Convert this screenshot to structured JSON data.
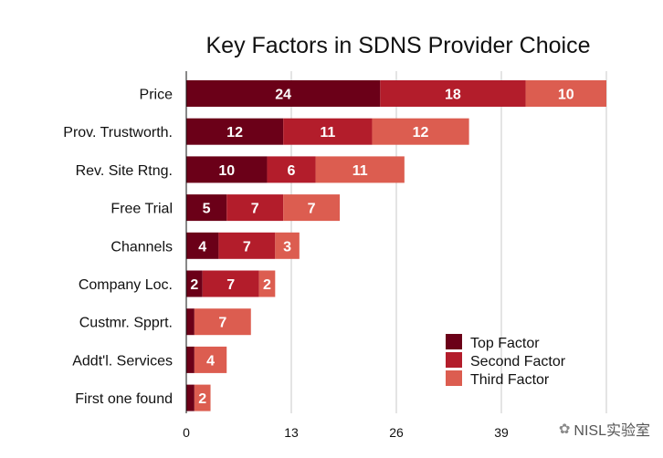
{
  "chart_data": {
    "type": "bar",
    "orientation": "horizontal",
    "stacked": true,
    "title": "Key Factors in SDNS Provider Choice",
    "categories": [
      "Price",
      "Prov. Trustworth.",
      "Rev. Site Rtng.",
      "Free Trial",
      "Channels",
      "Company Loc.",
      "Custmr. Spprt.",
      "Addt'l. Services",
      "First one found"
    ],
    "series": [
      {
        "name": "Top Factor",
        "color": "#6b0018",
        "values": [
          24,
          12,
          10,
          5,
          4,
          2,
          1,
          1,
          1
        ]
      },
      {
        "name": "Second Factor",
        "color": "#b31d2b",
        "values": [
          18,
          11,
          6,
          7,
          7,
          7,
          0,
          0,
          0
        ]
      },
      {
        "name": "Third Factor",
        "color": "#dc5d50",
        "values": [
          10,
          12,
          11,
          7,
          3,
          2,
          7,
          4,
          2
        ]
      }
    ],
    "xticks": [
      0,
      13,
      26,
      39
    ],
    "xlim": [
      0,
      52
    ],
    "grid": true,
    "legend_position": "bottom-right"
  },
  "watermark": {
    "text": "NISL实验室",
    "icon": "wechat-bubble-icon",
    "icon_glyph": "✿"
  }
}
